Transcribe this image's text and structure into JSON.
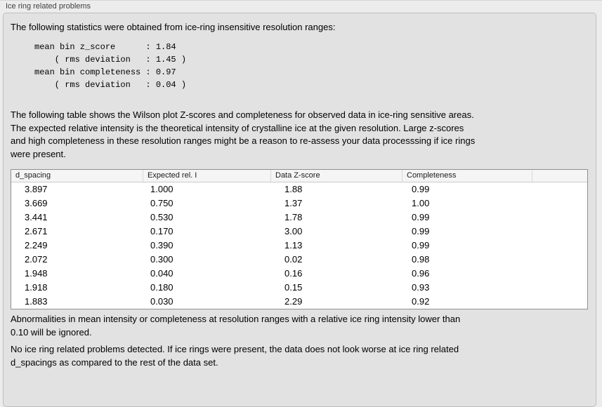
{
  "panel": {
    "title": "Ice ring related problems"
  },
  "intro": "The following statistics were obtained from ice-ring insensitive resolution ranges:",
  "stats_block": "mean bin z_score      : 1.84\n    ( rms deviation   : 1.45 )\nmean bin completeness : 0.97\n    ( rms deviation   : 0.04 )",
  "stats": {
    "mean_bin_z_score": 1.84,
    "z_score_rms_deviation": 1.45,
    "mean_bin_completeness": 0.97,
    "completeness_rms_deviation": 0.04
  },
  "table_description": "The following table shows the Wilson plot Z-scores and completeness for observed data in ice-ring sensitive areas.\nThe expected relative intensity is the theoretical intensity of crystalline ice at the given resolution. Large z-scores\nand high completeness in these resolution ranges might be a reason to re-assess your data processsing if ice rings\nwere present.",
  "table": {
    "headers": [
      "d_spacing",
      "Expected rel. I",
      "Data Z-score",
      "Completeness",
      ""
    ],
    "rows": [
      [
        "3.897",
        "1.000",
        "1.88",
        "0.99"
      ],
      [
        "3.669",
        "0.750",
        "1.37",
        "1.00"
      ],
      [
        "3.441",
        "0.530",
        "1.78",
        "0.99"
      ],
      [
        "2.671",
        "0.170",
        "3.00",
        "0.99"
      ],
      [
        "2.249",
        "0.390",
        "1.13",
        "0.99"
      ],
      [
        "2.072",
        "0.300",
        "0.02",
        "0.98"
      ],
      [
        "1.948",
        "0.040",
        "0.16",
        "0.96"
      ],
      [
        "1.918",
        "0.180",
        "0.15",
        "0.93"
      ],
      [
        "1.883",
        "0.030",
        "2.29",
        "0.92"
      ]
    ]
  },
  "note_ignore": "Abnormalities in mean intensity or completeness at resolution ranges with a relative ice ring intensity lower than\n0.10 will be ignored.",
  "conclusion": "No ice ring related problems detected. If ice rings were present, the data does not look worse at ice ring related\nd_spacings as compared to the rest of the data set."
}
